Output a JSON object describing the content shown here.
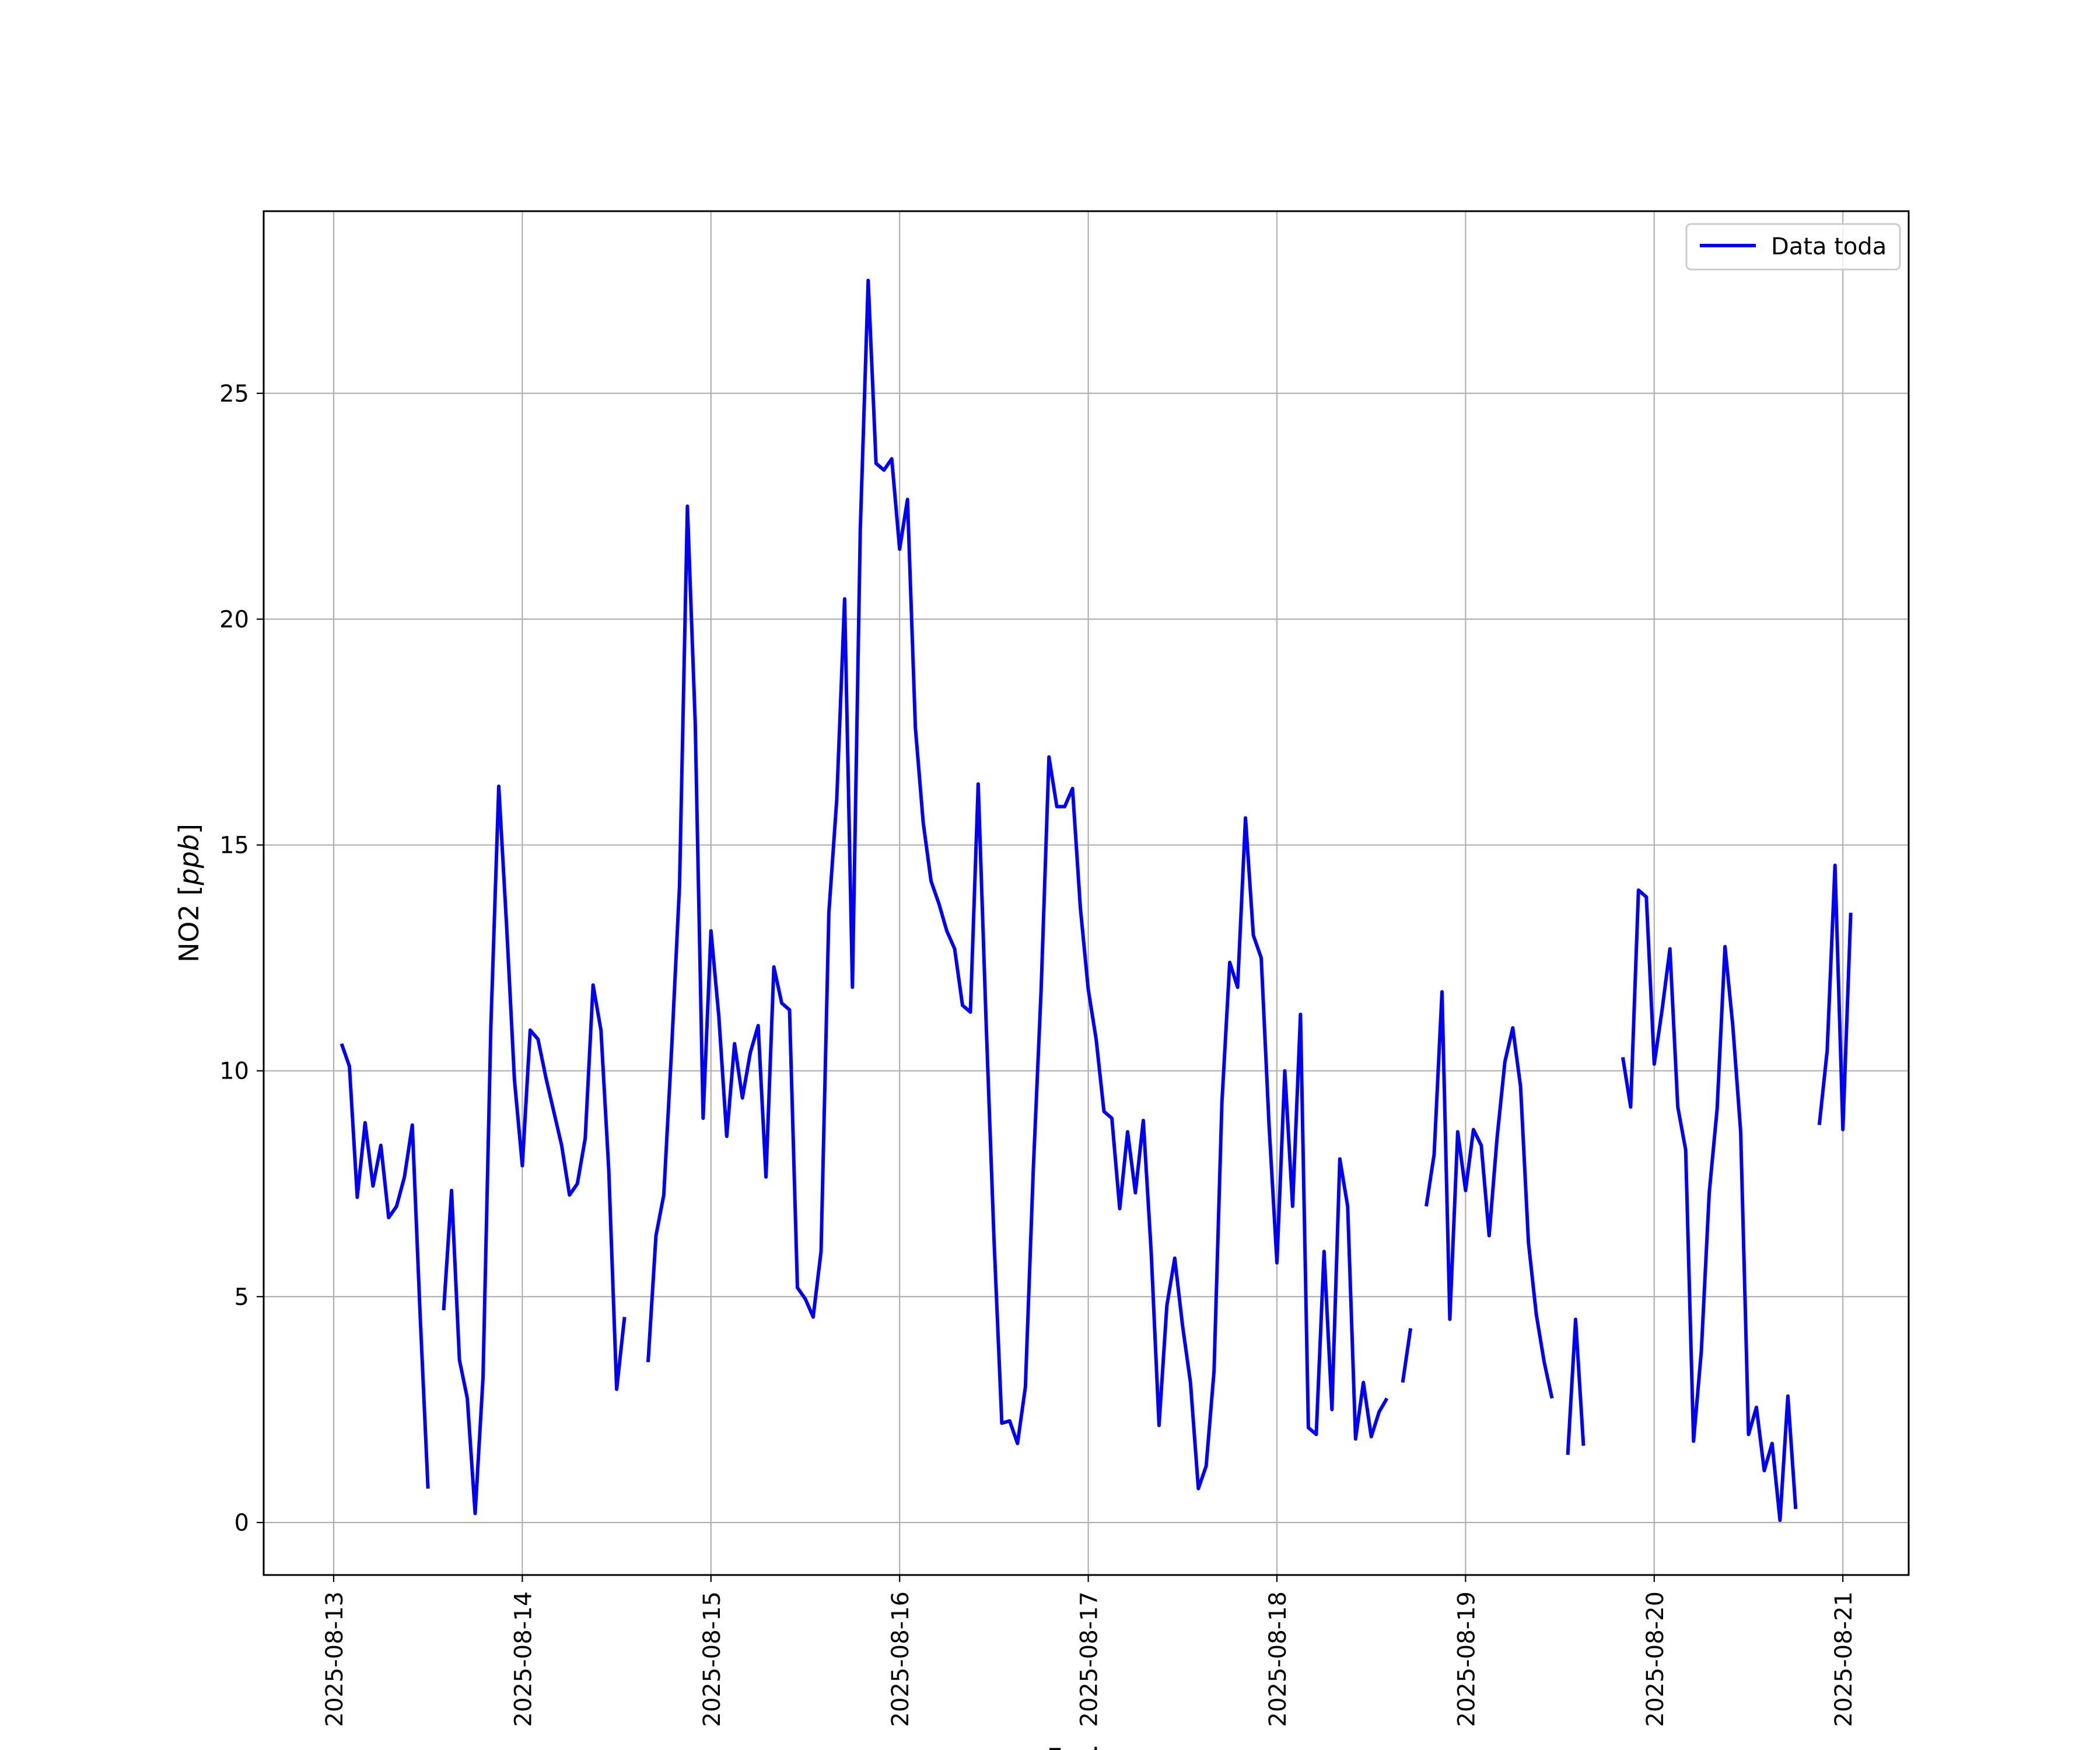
{
  "chart_data": {
    "type": "line",
    "title": "",
    "xlabel": "Fecha",
    "ylabel_main": "NO2 [",
    "ylabel_italic": "ppb",
    "ylabel_end": "]",
    "x_ticks": [
      "2025-08-13",
      "2025-08-14",
      "2025-08-15",
      "2025-08-16",
      "2025-08-17",
      "2025-08-18",
      "2025-08-19",
      "2025-08-20",
      "2025-08-21"
    ],
    "y_ticks": [
      0,
      5,
      10,
      15,
      20,
      25
    ],
    "xlim": [
      "2025-08-12T16:40",
      "2025-08-21T10:00"
    ],
    "ylim": [
      -1.35,
      28.9
    ],
    "grid": true,
    "legend_position": "top-right",
    "series": [
      {
        "name": "Data toda",
        "color": "#0000ff",
        "x_unit": "time of day offset from 2025-08-13 00:00 in hours",
        "segments": [
          [
            [
              1,
              10.6
            ],
            [
              2,
              10.1
            ],
            [
              3,
              7.2
            ],
            [
              4,
              8.85
            ],
            [
              5,
              7.45
            ],
            [
              6,
              8.35
            ],
            [
              7,
              6.75
            ],
            [
              8,
              7.0
            ],
            [
              9,
              7.65
            ],
            [
              10,
              8.8
            ],
            [
              11,
              4.6
            ],
            [
              12,
              0.75
            ]
          ],
          [
            [
              14,
              4.7
            ],
            [
              15,
              7.35
            ],
            [
              16,
              3.6
            ],
            [
              17,
              2.75
            ],
            [
              18,
              0.2
            ],
            [
              19,
              3.2
            ],
            [
              20,
              11.0
            ],
            [
              21,
              16.3
            ],
            [
              22,
              13.2
            ],
            [
              23,
              9.8
            ],
            [
              24,
              7.9
            ],
            [
              25,
              10.9
            ],
            [
              26,
              10.7
            ],
            [
              27,
              9.85
            ],
            [
              28,
              9.1
            ],
            [
              29,
              8.35
            ],
            [
              30,
              7.25
            ],
            [
              31,
              7.5
            ],
            [
              32,
              8.5
            ],
            [
              33,
              11.9
            ],
            [
              34,
              10.9
            ],
            [
              35,
              7.8
            ],
            [
              36,
              2.95
            ],
            [
              37,
              4.55
            ]
          ],
          [
            [
              40,
              3.55
            ],
            [
              41,
              6.35
            ],
            [
              42,
              7.25
            ],
            [
              43,
              10.5
            ],
            [
              44,
              14.1
            ],
            [
              45,
              22.5
            ],
            [
              46,
              17.7
            ],
            [
              47,
              8.95
            ],
            [
              48,
              13.1
            ],
            [
              49,
              11.2
            ],
            [
              50,
              8.55
            ],
            [
              51,
              10.6
            ],
            [
              52,
              9.4
            ],
            [
              53,
              10.4
            ],
            [
              54,
              11.0
            ],
            [
              55,
              7.65
            ],
            [
              56,
              12.3
            ],
            [
              57,
              11.5
            ],
            [
              58,
              11.35
            ],
            [
              59,
              5.2
            ],
            [
              60,
              4.95
            ],
            [
              61,
              4.55
            ],
            [
              62,
              6.0
            ],
            [
              63,
              13.5
            ],
            [
              64,
              16.0
            ],
            [
              65,
              20.45
            ],
            [
              66,
              11.85
            ],
            [
              67,
              22.0
            ],
            [
              68,
              27.5
            ],
            [
              69,
              23.45
            ],
            [
              70,
              23.3
            ],
            [
              71,
              23.55
            ],
            [
              72,
              21.55
            ],
            [
              73,
              22.65
            ],
            [
              74,
              17.6
            ],
            [
              75,
              15.5
            ],
            [
              76,
              14.2
            ],
            [
              77,
              13.7
            ],
            [
              78,
              13.1
            ],
            [
              79,
              12.7
            ],
            [
              80,
              11.45
            ],
            [
              81,
              11.3
            ],
            [
              82,
              16.35
            ],
            [
              83,
              11.1
            ],
            [
              84,
              6.3
            ],
            [
              85,
              2.2
            ],
            [
              86,
              2.25
            ],
            [
              87,
              1.75
            ],
            [
              88,
              3.0
            ],
            [
              89,
              7.8
            ],
            [
              90,
              11.8
            ],
            [
              91,
              16.95
            ],
            [
              92,
              15.85
            ],
            [
              93,
              15.85
            ],
            [
              94,
              16.25
            ],
            [
              95,
              13.6
            ],
            [
              96,
              11.8
            ],
            [
              97,
              10.7
            ],
            [
              98,
              9.1
            ],
            [
              99,
              8.95
            ],
            [
              100,
              6.95
            ],
            [
              101,
              8.65
            ],
            [
              102,
              7.3
            ],
            [
              103,
              8.9
            ],
            [
              104,
              6.0
            ],
            [
              105,
              2.15
            ],
            [
              106,
              4.8
            ],
            [
              107,
              5.85
            ],
            [
              108,
              4.35
            ],
            [
              109,
              3.1
            ],
            [
              110,
              0.75
            ],
            [
              111,
              1.25
            ],
            [
              112,
              3.35
            ],
            [
              113,
              9.3
            ],
            [
              114,
              12.4
            ],
            [
              115,
              11.85
            ],
            [
              116,
              15.6
            ],
            [
              117,
              13.0
            ],
            [
              118,
              12.5
            ],
            [
              119,
              8.8
            ],
            [
              120,
              5.75
            ],
            [
              121,
              10.0
            ],
            [
              122,
              7.0
            ],
            [
              123,
              11.25
            ],
            [
              124,
              2.1
            ],
            [
              125,
              1.95
            ],
            [
              126,
              6.0
            ],
            [
              127,
              2.5
            ],
            [
              128,
              8.05
            ],
            [
              129,
              7.0
            ],
            [
              130,
              1.85
            ],
            [
              131,
              3.1
            ],
            [
              132,
              1.9
            ],
            [
              133,
              2.45
            ],
            [
              134,
              2.75
            ]
          ],
          [
            [
              136,
              3.1
            ],
            [
              137,
              4.3
            ]
          ],
          [
            [
              139,
              7.0
            ],
            [
              140,
              8.15
            ],
            [
              141,
              11.75
            ],
            [
              142,
              4.5
            ],
            [
              143,
              8.65
            ],
            [
              144,
              7.35
            ],
            [
              145,
              8.7
            ],
            [
              146,
              8.35
            ],
            [
              147,
              6.35
            ],
            [
              148,
              8.5
            ],
            [
              149,
              10.2
            ],
            [
              150,
              10.95
            ],
            [
              151,
              9.65
            ],
            [
              152,
              6.2
            ],
            [
              153,
              4.6
            ],
            [
              154,
              3.55
            ],
            [
              155,
              2.75
            ]
          ],
          [
            [
              157,
              1.5
            ],
            [
              158,
              4.5
            ],
            [
              159,
              1.7
            ]
          ],
          [
            [
              164,
              10.3
            ],
            [
              165,
              9.2
            ],
            [
              166,
              14.0
            ],
            [
              167,
              13.85
            ],
            [
              168,
              10.15
            ],
            [
              169,
              11.35
            ],
            [
              170,
              12.7
            ],
            [
              171,
              9.2
            ],
            [
              172,
              8.25
            ],
            [
              173,
              1.8
            ],
            [
              174,
              3.8
            ],
            [
              175,
              7.3
            ],
            [
              176,
              9.15
            ],
            [
              177,
              12.75
            ],
            [
              178,
              11.0
            ],
            [
              179,
              8.65
            ],
            [
              180,
              1.95
            ],
            [
              181,
              2.55
            ],
            [
              182,
              1.15
            ],
            [
              183,
              1.75
            ],
            [
              184,
              0.05
            ],
            [
              185,
              2.8
            ],
            [
              186,
              0.3
            ]
          ],
          [
            [
              189,
              8.8
            ],
            [
              190,
              10.45
            ],
            [
              191,
              14.55
            ],
            [
              192,
              8.7
            ],
            [
              193,
              13.5
            ]
          ]
        ]
      }
    ]
  }
}
